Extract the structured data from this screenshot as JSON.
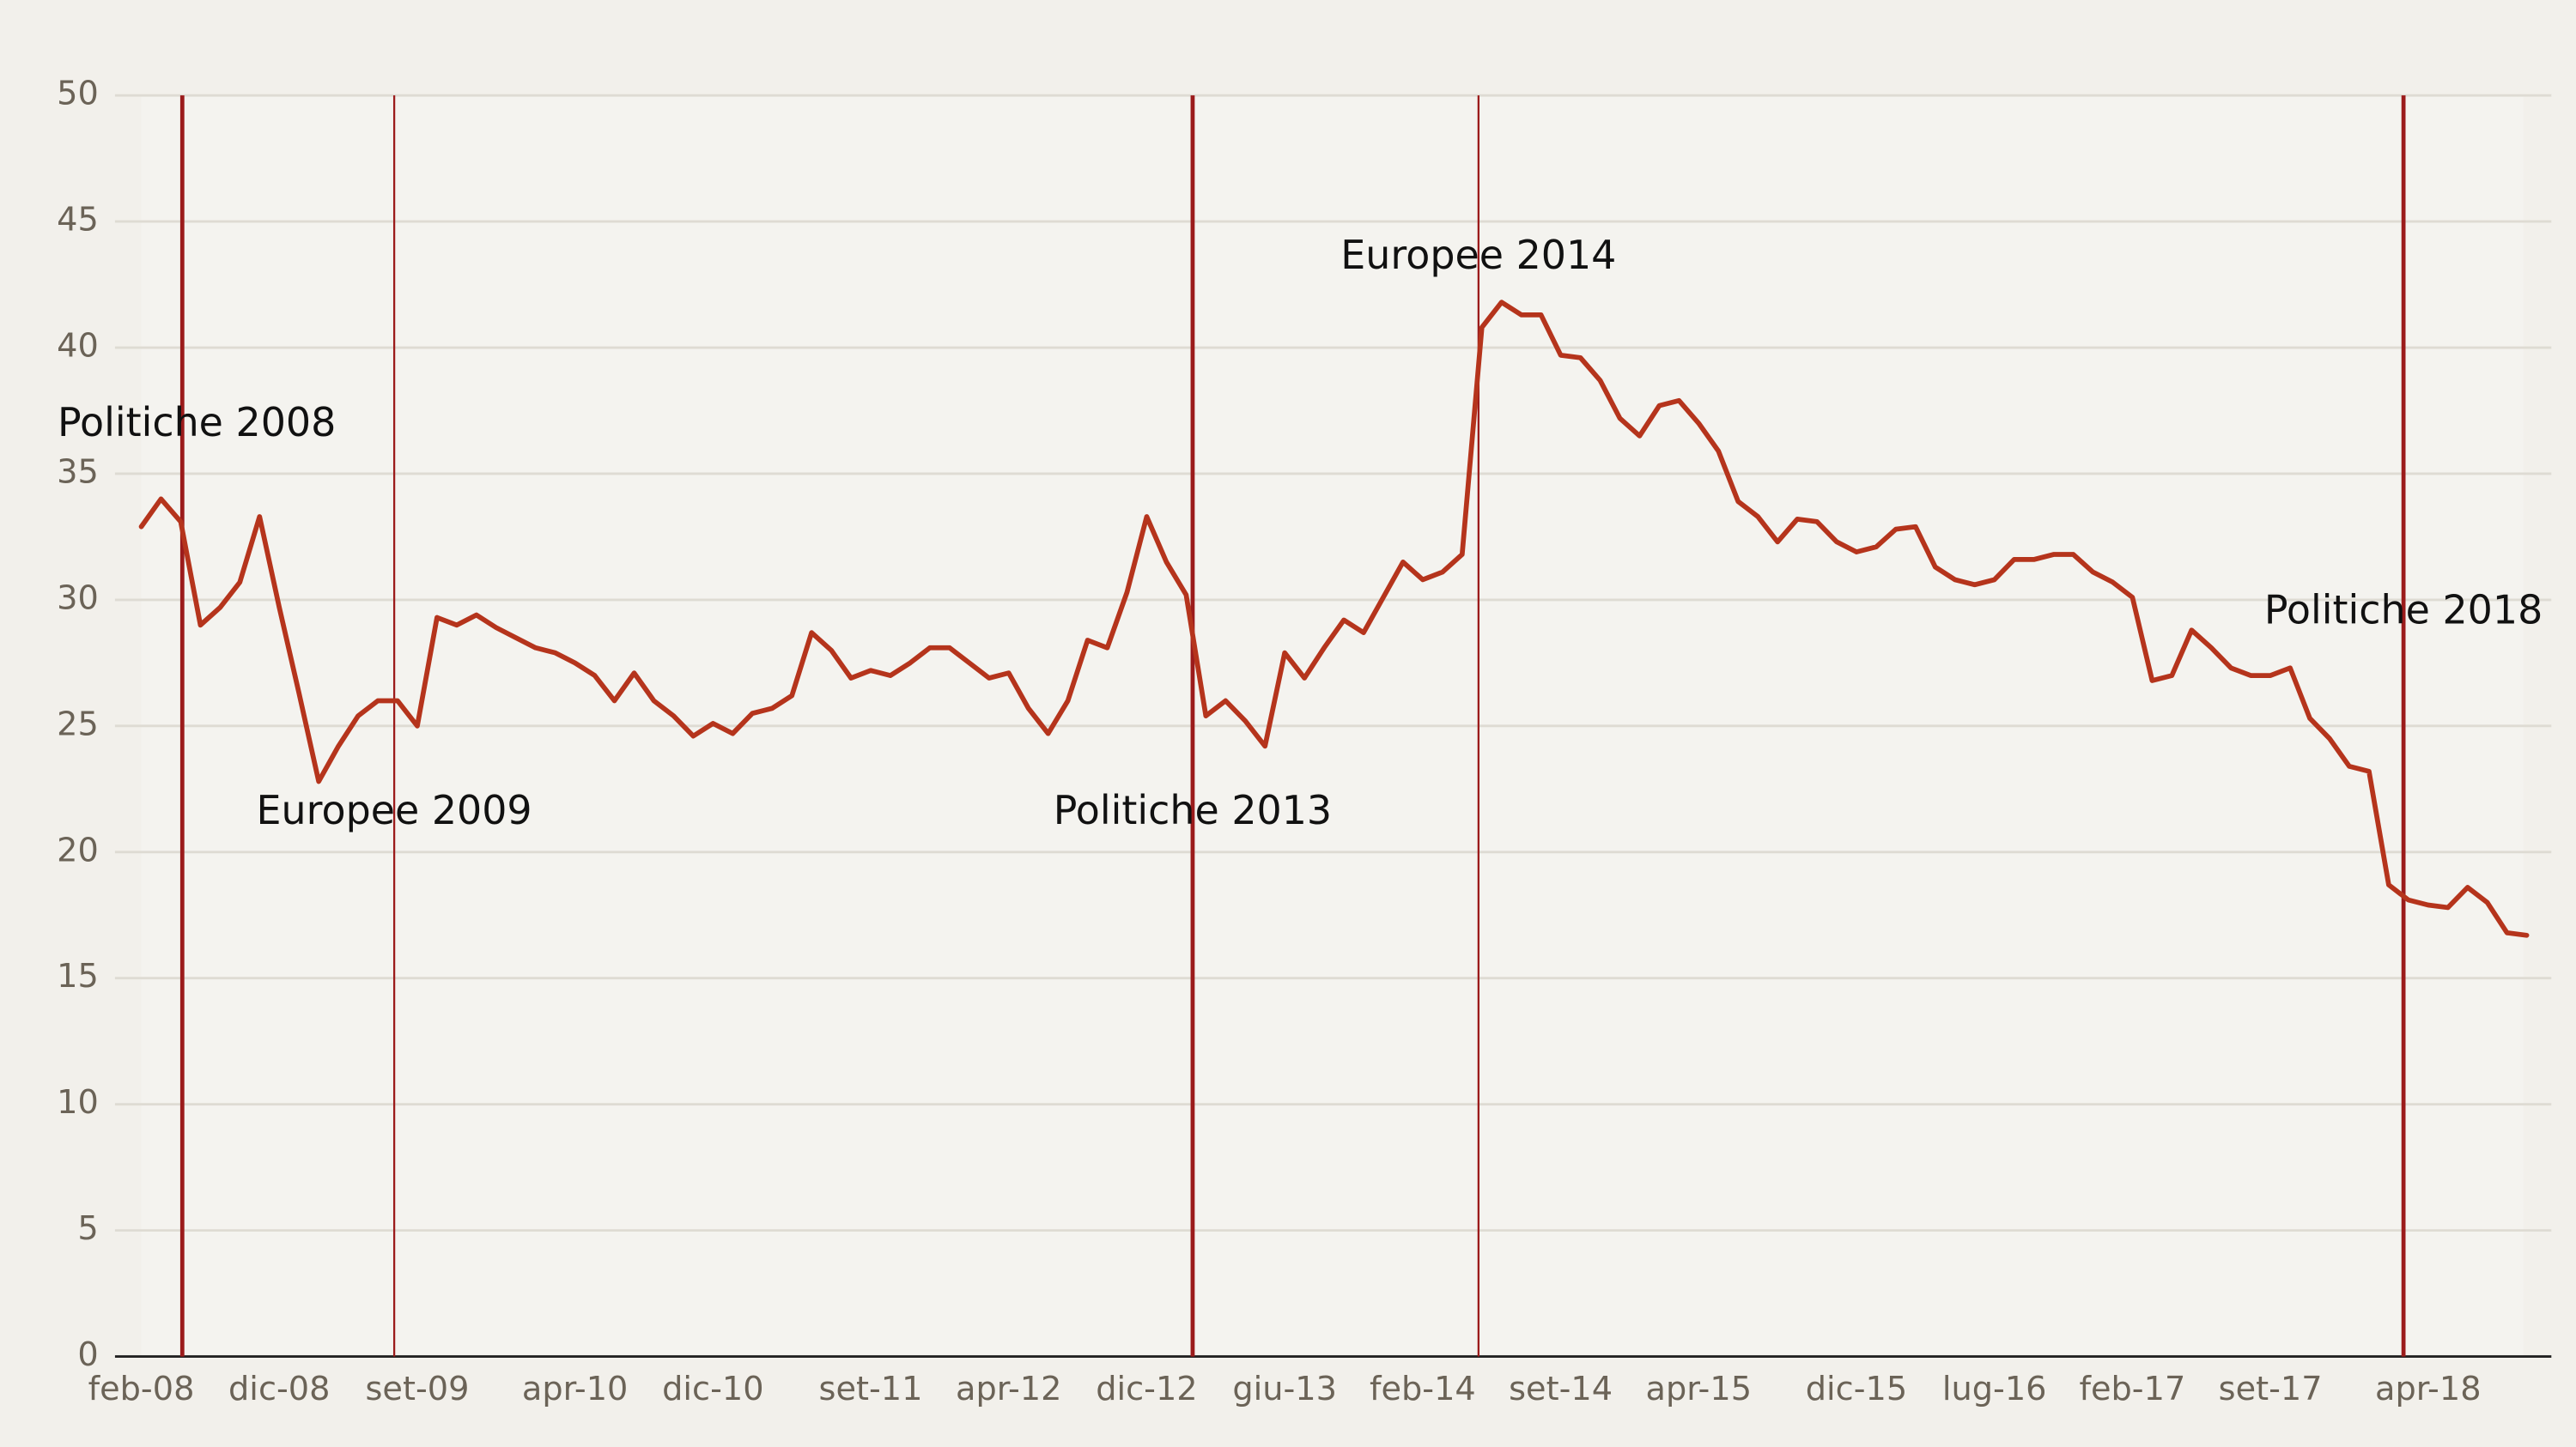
{
  "chart_data": {
    "type": "line",
    "categories": [
      "feb-08",
      null,
      null,
      null,
      null,
      null,
      null,
      "dic-08",
      null,
      null,
      null,
      null,
      null,
      null,
      "set-09",
      null,
      null,
      null,
      null,
      null,
      null,
      null,
      "apr-10",
      null,
      null,
      null,
      null,
      null,
      null,
      "dic-10",
      null,
      null,
      null,
      null,
      null,
      null,
      null,
      "set-11",
      null,
      null,
      null,
      null,
      null,
      null,
      "apr-12",
      null,
      null,
      null,
      null,
      null,
      null,
      "dic-12",
      null,
      null,
      null,
      null,
      null,
      null,
      "giu-13",
      null,
      null,
      null,
      null,
      null,
      null,
      "feb-14",
      null,
      null,
      null,
      null,
      null,
      null,
      "set-14",
      null,
      null,
      null,
      null,
      null,
      null,
      "apr-15",
      null,
      null,
      null,
      null,
      null,
      null,
      null,
      "dic-15",
      null,
      null,
      null,
      null,
      null,
      null,
      "lug-16",
      null,
      null,
      null,
      null,
      null,
      null,
      "feb-17",
      null,
      null,
      null,
      null,
      null,
      null,
      "set-17",
      null,
      null,
      null,
      null,
      null,
      null,
      null,
      "apr-18",
      null,
      null,
      null,
      null,
      null
    ],
    "values": [
      32.9,
      34.0,
      33.1,
      29.0,
      29.7,
      30.7,
      33.3,
      29.7,
      26.3,
      22.8,
      24.2,
      25.4,
      26.0,
      26.0,
      25.0,
      29.3,
      29.0,
      29.4,
      28.9,
      28.5,
      28.1,
      27.9,
      27.5,
      27.0,
      26.0,
      27.1,
      26.0,
      25.4,
      24.6,
      25.1,
      24.7,
      25.5,
      25.7,
      26.2,
      28.7,
      28.0,
      26.9,
      27.2,
      27.0,
      27.5,
      28.1,
      28.1,
      27.5,
      26.9,
      27.1,
      25.7,
      24.7,
      26.0,
      28.4,
      28.1,
      30.3,
      33.3,
      31.5,
      30.2,
      25.4,
      26.0,
      25.2,
      24.2,
      27.9,
      26.9,
      28.1,
      29.2,
      28.7,
      30.1,
      31.5,
      30.8,
      31.1,
      31.8,
      40.8,
      41.8,
      41.3,
      41.3,
      39.7,
      39.6,
      38.7,
      37.2,
      36.5,
      37.7,
      37.9,
      37.0,
      35.9,
      33.9,
      33.3,
      32.3,
      33.2,
      33.1,
      32.3,
      31.9,
      32.1,
      32.8,
      32.9,
      31.3,
      30.8,
      30.6,
      30.8,
      31.6,
      31.6,
      31.8,
      31.8,
      31.1,
      30.7,
      30.1,
      26.8,
      27.0,
      28.8,
      28.1,
      27.3,
      27.0,
      27.0,
      27.3,
      25.3,
      24.5,
      23.4,
      23.2,
      18.7,
      18.1,
      17.9,
      17.8,
      18.6,
      18.0,
      16.8,
      16.7
    ],
    "color": "#b5341c",
    "ylim": [
      0,
      50
    ],
    "yticks": [
      0,
      5,
      10,
      15,
      20,
      25,
      30,
      35,
      40,
      45,
      50
    ],
    "grid": true,
    "annotations": [
      {
        "label": "Politiche 2008",
        "x": 2.08,
        "color": "#9b1b1b",
        "width": 2.5
      },
      {
        "label": "Europee 2009",
        "x": 12.83,
        "color": "#9b1b1b",
        "width": 1.2
      },
      {
        "label": "Politiche 2013",
        "x": 53.33,
        "color": "#9b1b1b",
        "width": 2.5
      },
      {
        "label": "Europee 2014",
        "x": 67.83,
        "color": "#9b1b1b",
        "width": 1.2
      },
      {
        "label": "Politiche 2018",
        "x": 114.75,
        "color": "#9b1b1b",
        "width": 2.5
      }
    ]
  }
}
